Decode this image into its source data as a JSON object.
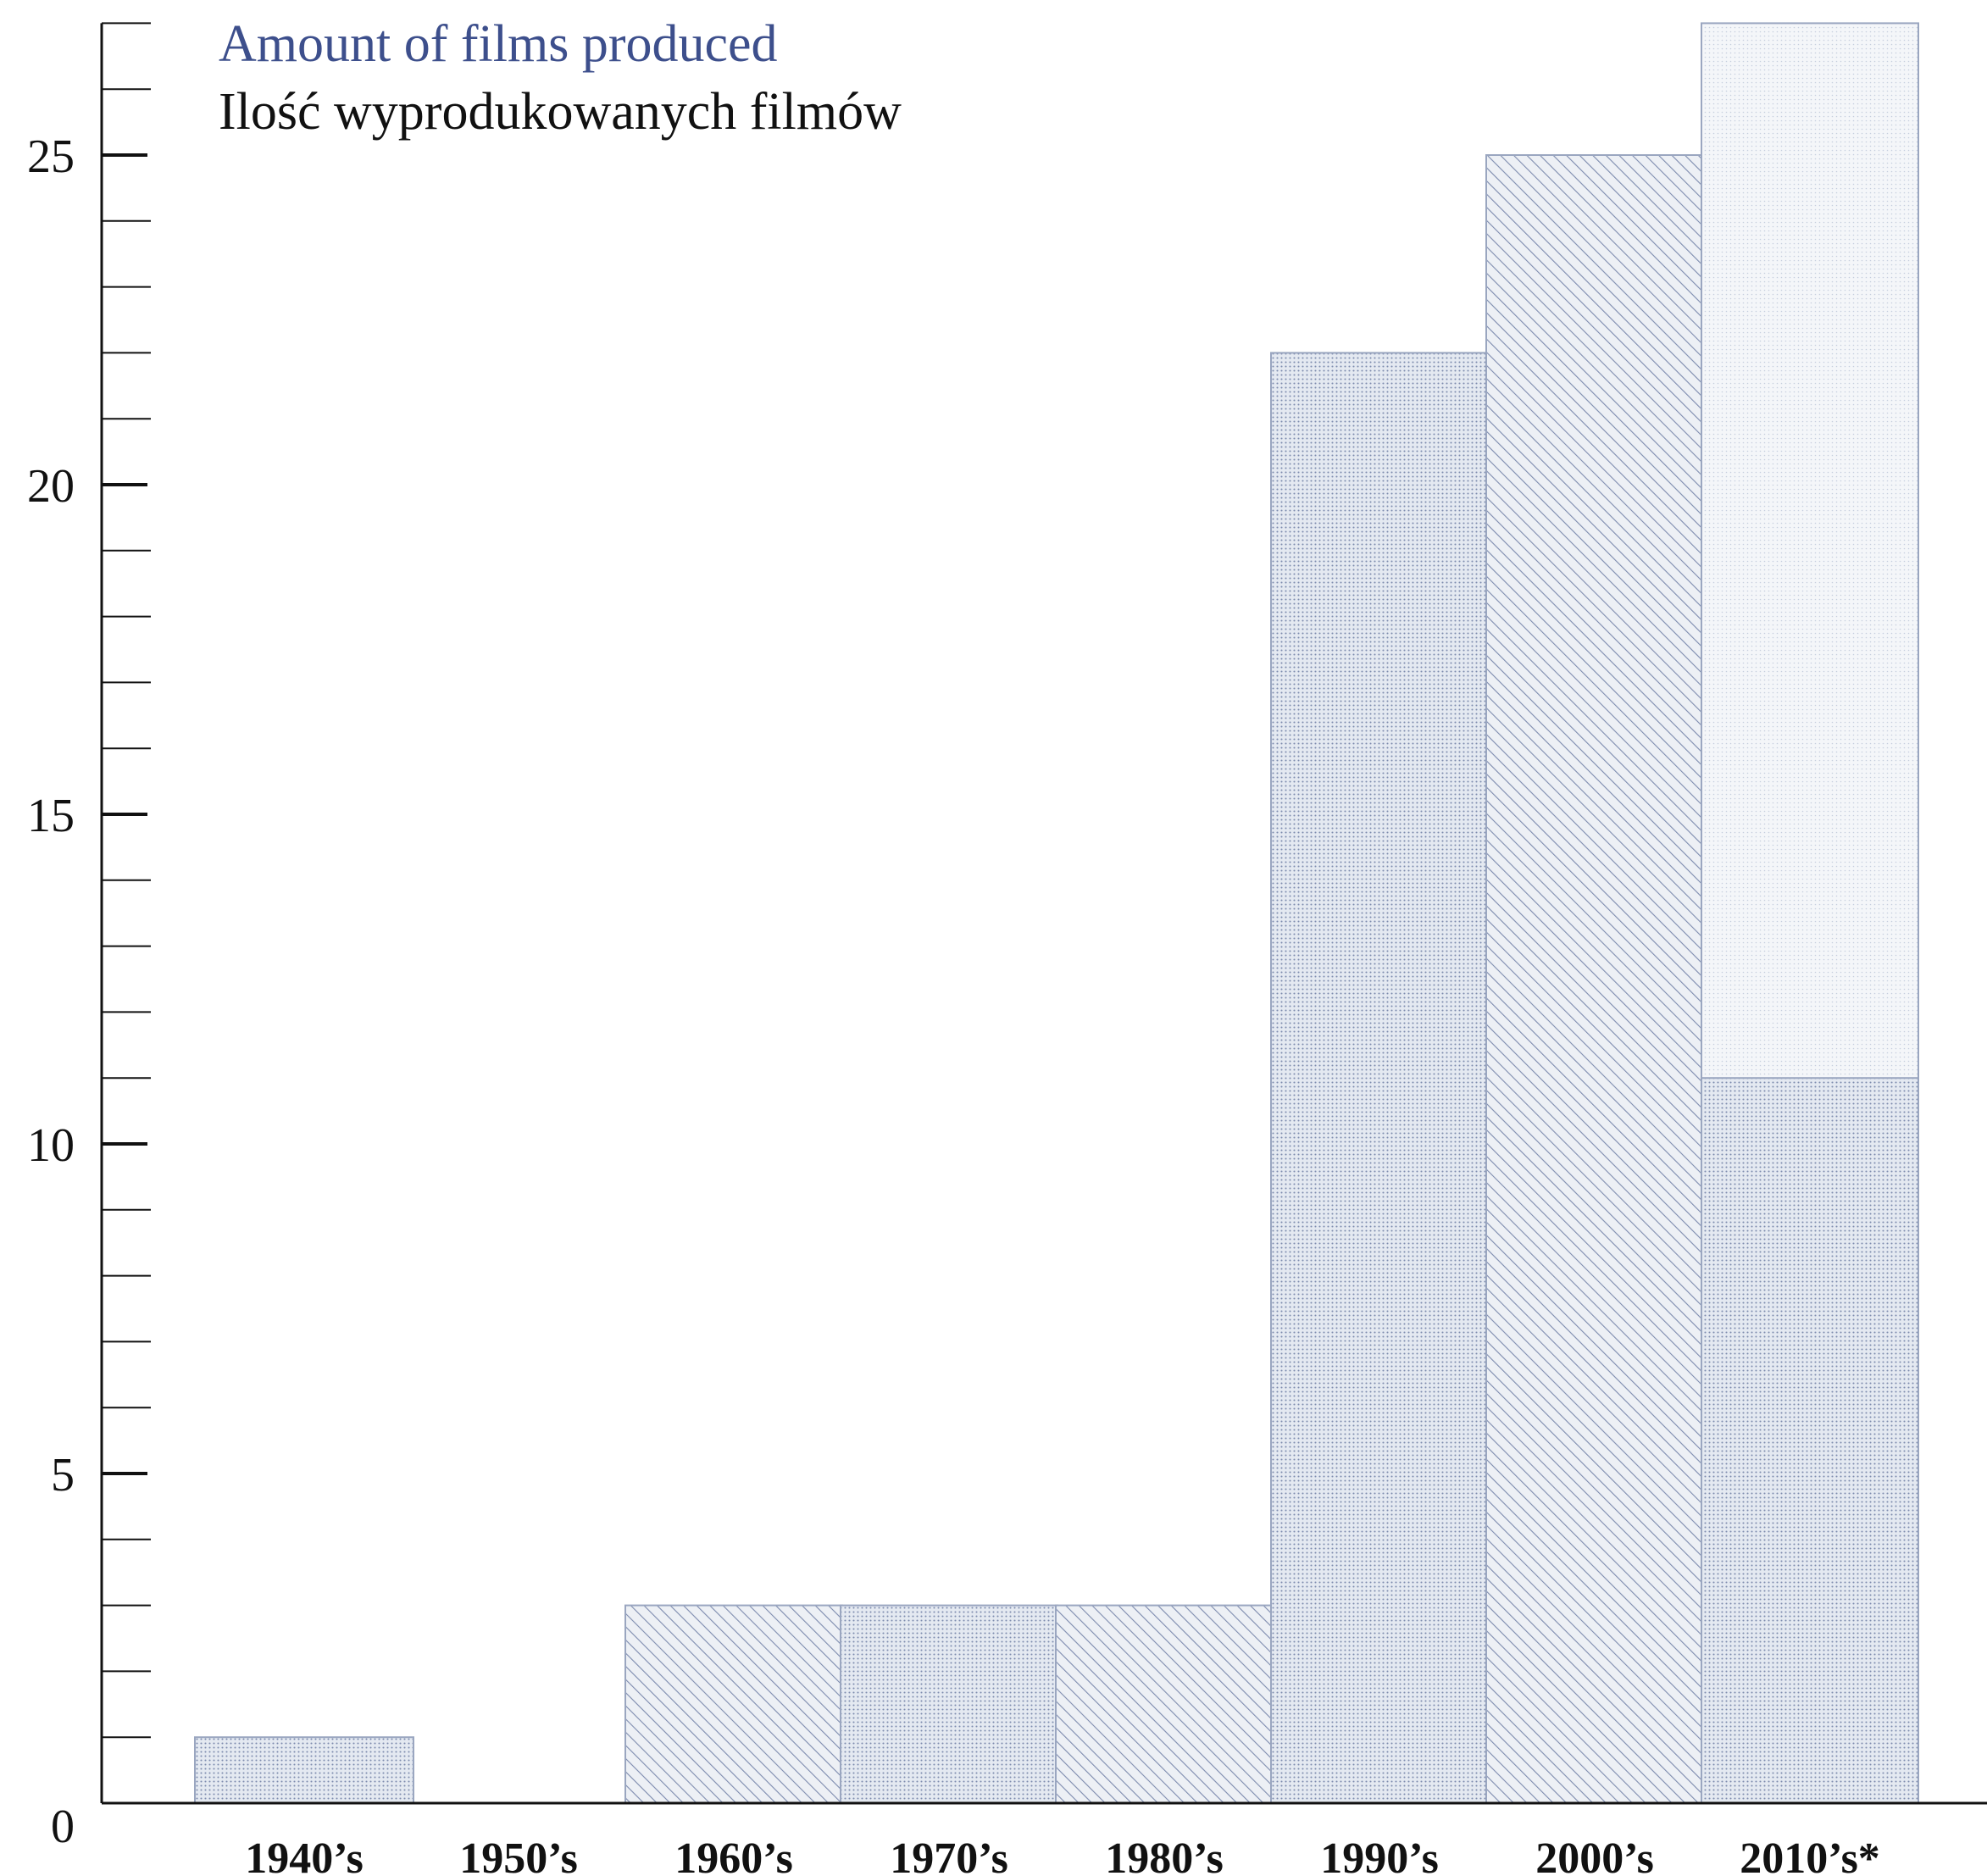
{
  "chart_data": {
    "type": "bar",
    "title": "Amount of films produced",
    "subtitle": "Ilość wyprodukowanych filmów",
    "xlabel": "",
    "ylabel": "",
    "categories": [
      "1940’s",
      "1950’s",
      "1960’s",
      "1970’s",
      "1980’s",
      "1990’s",
      "2000’s",
      "2010’s*"
    ],
    "values": [
      1,
      0,
      3,
      3,
      3,
      22,
      25,
      11
    ],
    "projected_values": [
      null,
      null,
      null,
      null,
      null,
      null,
      null,
      27
    ],
    "fill_patterns": [
      "dots",
      "dots",
      "hatch",
      "dots",
      "hatch",
      "dots",
      "hatch",
      "dots"
    ],
    "ylim": [
      0,
      27
    ],
    "y_major_ticks": [
      0,
      5,
      10,
      15,
      20,
      25
    ],
    "y_minor_step": 1,
    "grid": false,
    "legend": "none",
    "colors": {
      "title_en": "#3d4f8c",
      "title_pl": "#111111",
      "bar_fill": "#e4e9f1",
      "bar_stroke": "#9aa6c0",
      "pattern": "#7d8bae",
      "projection_fill": "#f4f6f9",
      "axis": "#111111"
    }
  }
}
